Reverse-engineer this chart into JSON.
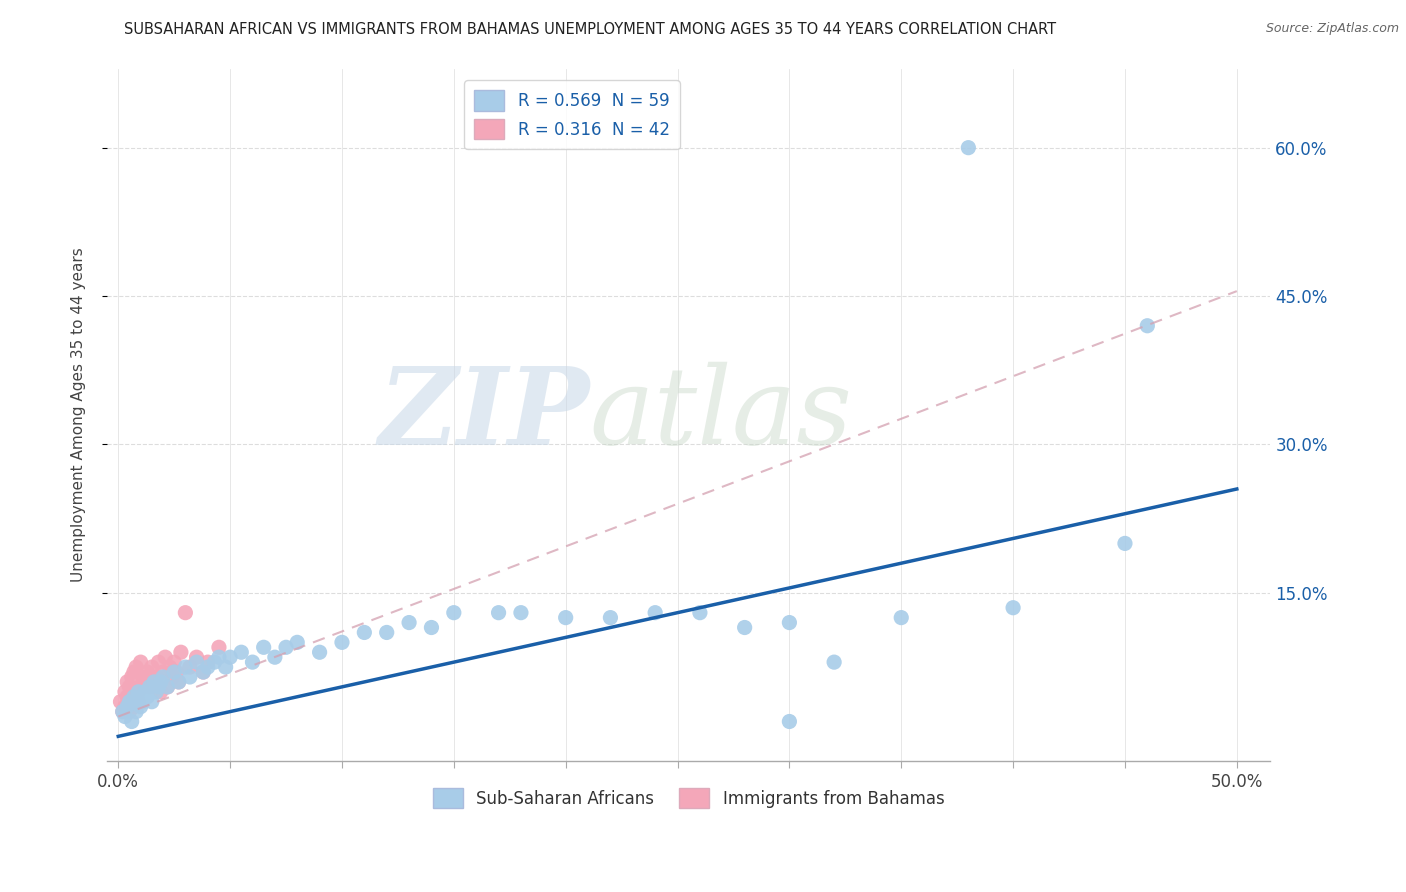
{
  "title": "SUBSAHARAN AFRICAN VS IMMIGRANTS FROM BAHAMAS UNEMPLOYMENT AMONG AGES 35 TO 44 YEARS CORRELATION CHART",
  "source": "Source: ZipAtlas.com",
  "ylabel": "Unemployment Among Ages 35 to 44 years",
  "xlim": [
    -0.005,
    0.515
  ],
  "ylim": [
    -0.02,
    0.68
  ],
  "xtick_positions": [
    0.0,
    0.05,
    0.1,
    0.15,
    0.2,
    0.25,
    0.3,
    0.35,
    0.4,
    0.45,
    0.5
  ],
  "xticklabels": [
    "0.0%",
    "",
    "",
    "",
    "",
    "",
    "",
    "",
    "",
    "",
    "50.0%"
  ],
  "ytick_positions": [
    0.15,
    0.3,
    0.45,
    0.6
  ],
  "ytick_labels": [
    "15.0%",
    "30.0%",
    "45.0%",
    "60.0%"
  ],
  "legend_blue_label": "R = 0.569  N = 59",
  "legend_pink_label": "R = 0.316  N = 42",
  "series1_label": "Sub-Saharan Africans",
  "series2_label": "Immigrants from Bahamas",
  "blue_color": "#a8cce8",
  "pink_color": "#f4a7b9",
  "blue_line_color": "#1a5fa8",
  "pink_line_color": "#d4a0b0",
  "blue_legend_color": "#a8cce8",
  "pink_legend_color": "#f4a7b9",
  "watermark_zip": "ZIP",
  "watermark_atlas": "atlas",
  "background_color": "#ffffff",
  "grid_color": "#dddddd",
  "blue_x": [
    0.002,
    0.003,
    0.004,
    0.005,
    0.006,
    0.007,
    0.008,
    0.009,
    0.01,
    0.011,
    0.012,
    0.013,
    0.014,
    0.015,
    0.016,
    0.017,
    0.018,
    0.019,
    0.02,
    0.022,
    0.025,
    0.027,
    0.03,
    0.032,
    0.035,
    0.038,
    0.04,
    0.043,
    0.045,
    0.048,
    0.05,
    0.055,
    0.06,
    0.065,
    0.07,
    0.075,
    0.08,
    0.09,
    0.1,
    0.11,
    0.12,
    0.13,
    0.14,
    0.15,
    0.17,
    0.18,
    0.2,
    0.22,
    0.24,
    0.26,
    0.28,
    0.3,
    0.32,
    0.35,
    0.38,
    0.4,
    0.45,
    0.46,
    0.3
  ],
  "blue_y": [
    0.03,
    0.025,
    0.035,
    0.04,
    0.02,
    0.045,
    0.03,
    0.05,
    0.035,
    0.04,
    0.05,
    0.045,
    0.055,
    0.04,
    0.06,
    0.05,
    0.055,
    0.06,
    0.065,
    0.055,
    0.07,
    0.06,
    0.075,
    0.065,
    0.08,
    0.07,
    0.075,
    0.08,
    0.085,
    0.075,
    0.085,
    0.09,
    0.08,
    0.095,
    0.085,
    0.095,
    0.1,
    0.09,
    0.1,
    0.11,
    0.11,
    0.12,
    0.115,
    0.13,
    0.13,
    0.13,
    0.125,
    0.125,
    0.13,
    0.13,
    0.115,
    0.12,
    0.08,
    0.125,
    0.6,
    0.135,
    0.2,
    0.42,
    0.02
  ],
  "pink_x": [
    0.001,
    0.002,
    0.003,
    0.003,
    0.004,
    0.004,
    0.005,
    0.005,
    0.006,
    0.006,
    0.007,
    0.007,
    0.008,
    0.008,
    0.009,
    0.009,
    0.01,
    0.01,
    0.011,
    0.012,
    0.013,
    0.014,
    0.015,
    0.016,
    0.017,
    0.018,
    0.019,
    0.02,
    0.021,
    0.022,
    0.023,
    0.024,
    0.025,
    0.026,
    0.027,
    0.028,
    0.03,
    0.032,
    0.035,
    0.038,
    0.04,
    0.045
  ],
  "pink_y": [
    0.04,
    0.03,
    0.05,
    0.035,
    0.045,
    0.06,
    0.03,
    0.055,
    0.04,
    0.065,
    0.035,
    0.07,
    0.045,
    0.075,
    0.05,
    0.04,
    0.055,
    0.08,
    0.06,
    0.065,
    0.07,
    0.055,
    0.075,
    0.06,
    0.065,
    0.08,
    0.05,
    0.07,
    0.085,
    0.055,
    0.075,
    0.065,
    0.08,
    0.07,
    0.06,
    0.09,
    0.13,
    0.075,
    0.085,
    0.07,
    0.08,
    0.095
  ],
  "blue_line_x": [
    0.0,
    0.5
  ],
  "blue_line_y": [
    0.005,
    0.255
  ],
  "pink_line_x": [
    0.0,
    0.5
  ],
  "pink_line_y": [
    0.025,
    0.455
  ]
}
